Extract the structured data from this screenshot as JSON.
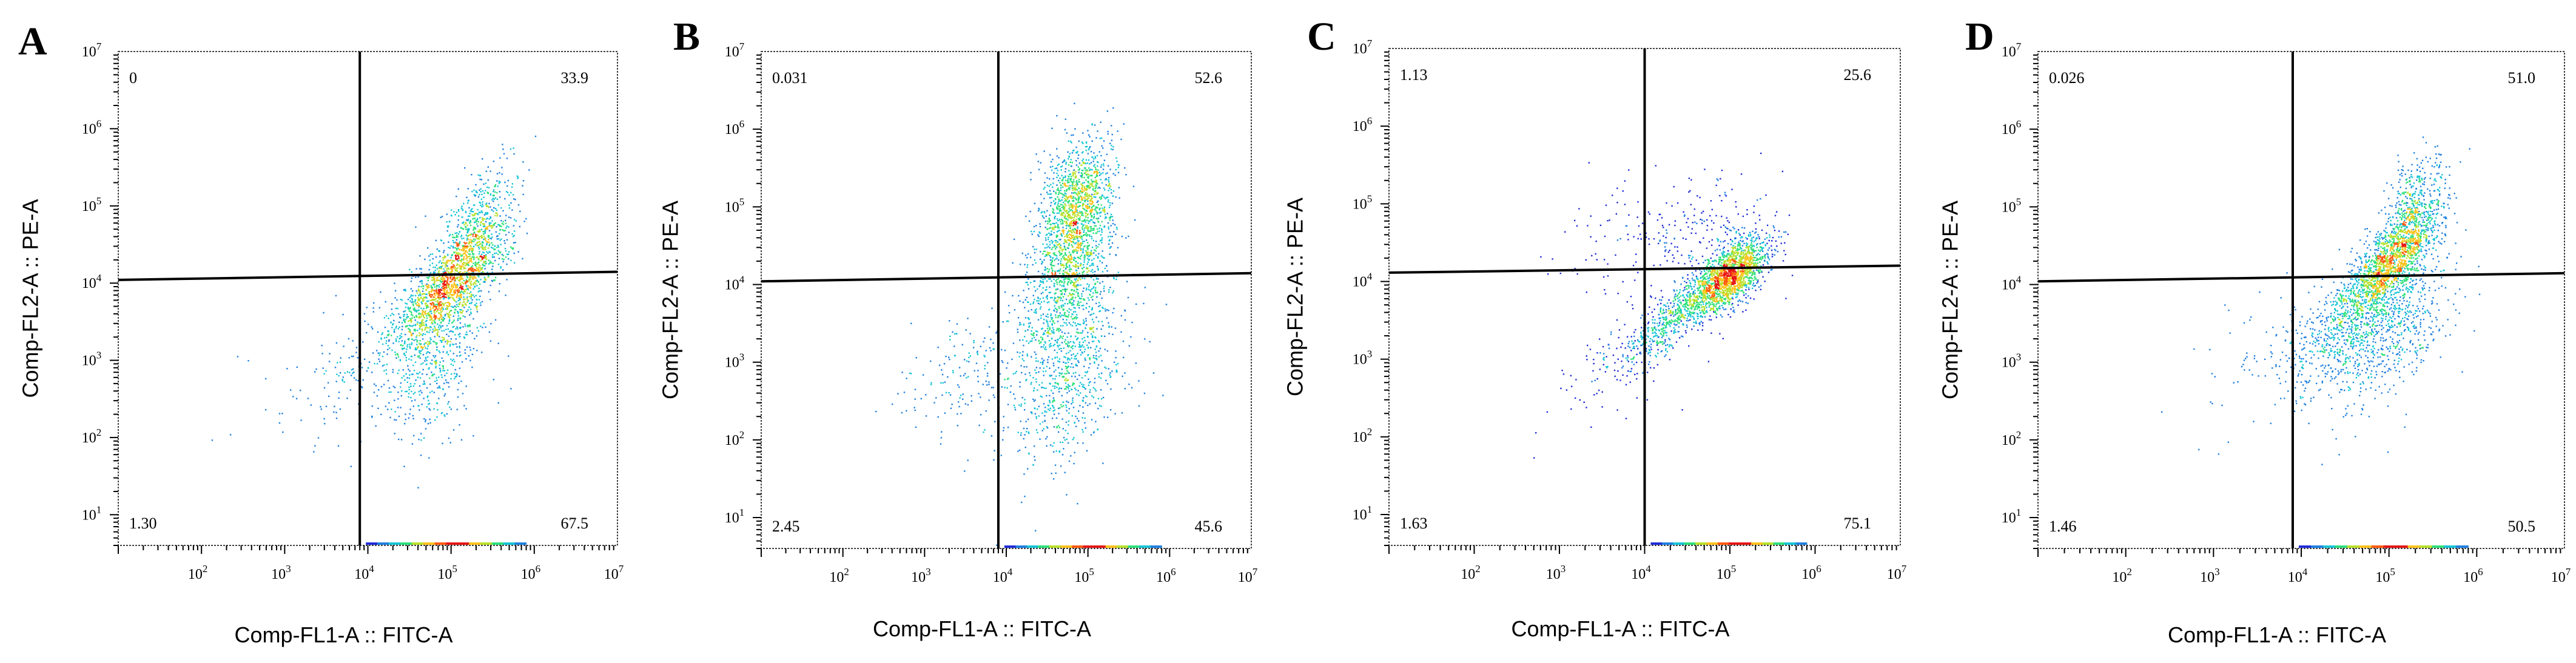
{
  "figure": {
    "description_free": true
  },
  "chart_data": [
    {
      "type": "scatter",
      "panel_label": "A",
      "title": "",
      "xlabel": "Comp-FL1-A :: FITC-A",
      "ylabel": "Comp-FL2-A :: PE-A",
      "xscale": "log",
      "yscale": "log",
      "xlim": [
        10,
        10000000
      ],
      "ylim": [
        4,
        10000000
      ],
      "x_ticks": [
        {
          "base": "10",
          "exp": "2"
        },
        {
          "base": "10",
          "exp": "3"
        },
        {
          "base": "10",
          "exp": "4"
        },
        {
          "base": "10",
          "exp": "5"
        },
        {
          "base": "10",
          "exp": "6"
        },
        {
          "base": "10",
          "exp": "7"
        }
      ],
      "y_ticks": [
        {
          "base": "10",
          "exp": "1"
        },
        {
          "base": "10",
          "exp": "2"
        },
        {
          "base": "10",
          "exp": "3"
        },
        {
          "base": "10",
          "exp": "4"
        },
        {
          "base": "10",
          "exp": "5"
        },
        {
          "base": "10",
          "exp": "6"
        },
        {
          "base": "10",
          "exp": "7"
        }
      ],
      "gate": {
        "x": 8000,
        "y_left": 11000,
        "y_right": 14000
      },
      "quadrants": {
        "upper_left": "0",
        "upper_right": "33.9",
        "lower_left": "1.30",
        "lower_right": "67.5"
      },
      "clusters": [
        {
          "cx": 100000,
          "cy": 10000,
          "spread_x": 0.28,
          "spread_y": 0.32,
          "corr": 0.75,
          "n": 1400
        },
        {
          "cx": 200000,
          "cy": 60000,
          "spread_x": 0.18,
          "spread_y": 0.3,
          "corr": 0.6,
          "n": 450
        },
        {
          "cx": 60000,
          "cy": 1500,
          "spread_x": 0.25,
          "spread_y": 0.45,
          "corr": 0.3,
          "n": 650
        },
        {
          "cx": 8000,
          "cy": 1000,
          "spread_x": 0.3,
          "spread_y": 0.35,
          "corr": 0.5,
          "n": 110
        },
        {
          "cx": 1500,
          "cy": 300,
          "spread_x": 0.35,
          "spread_y": 0.45,
          "corr": 0.3,
          "n": 25
        }
      ]
    },
    {
      "type": "scatter",
      "panel_label": "B",
      "title": "",
      "xlabel": "Comp-FL1-A :: FITC-A",
      "ylabel": "Comp-FL2-A :: PE-A",
      "xscale": "log",
      "yscale": "log",
      "xlim": [
        10,
        10000000
      ],
      "ylim": [
        4,
        10000000
      ],
      "x_ticks": [
        {
          "base": "10",
          "exp": "2"
        },
        {
          "base": "10",
          "exp": "3"
        },
        {
          "base": "10",
          "exp": "4"
        },
        {
          "base": "10",
          "exp": "5"
        },
        {
          "base": "10",
          "exp": "6"
        },
        {
          "base": "10",
          "exp": "7"
        }
      ],
      "y_ticks": [
        {
          "base": "10",
          "exp": "1"
        },
        {
          "base": "10",
          "exp": "2"
        },
        {
          "base": "10",
          "exp": "3"
        },
        {
          "base": "10",
          "exp": "4"
        },
        {
          "base": "10",
          "exp": "5"
        },
        {
          "base": "10",
          "exp": "6"
        },
        {
          "base": "10",
          "exp": "7"
        }
      ],
      "gate": {
        "x": 8000,
        "y_left": 11000,
        "y_right": 14000
      },
      "quadrants": {
        "upper_left": "0.031",
        "upper_right": "52.6",
        "lower_left": "2.45",
        "lower_right": "45.6"
      },
      "clusters": [
        {
          "cx": 70000,
          "cy": 100000,
          "spread_x": 0.18,
          "spread_y": 0.35,
          "corr": 0.3,
          "n": 1300
        },
        {
          "cx": 55000,
          "cy": 10000,
          "spread_x": 0.22,
          "spread_y": 0.35,
          "corr": 0.4,
          "n": 800
        },
        {
          "cx": 50000,
          "cy": 700,
          "spread_x": 0.3,
          "spread_y": 0.45,
          "corr": 0.3,
          "n": 700
        },
        {
          "cx": 3000,
          "cy": 700,
          "spread_x": 0.35,
          "spread_y": 0.35,
          "corr": 0.5,
          "n": 160
        }
      ]
    },
    {
      "type": "scatter",
      "panel_label": "C",
      "title": "",
      "xlabel": "Comp-FL1-A :: FITC-A",
      "ylabel": "Comp-FL2-A :: PE-A",
      "xscale": "log",
      "yscale": "log",
      "xlim": [
        10,
        10000000
      ],
      "ylim": [
        4,
        10000000
      ],
      "x_ticks": [
        {
          "base": "10",
          "exp": "2"
        },
        {
          "base": "10",
          "exp": "3"
        },
        {
          "base": "10",
          "exp": "4"
        },
        {
          "base": "10",
          "exp": "5"
        },
        {
          "base": "10",
          "exp": "6"
        },
        {
          "base": "10",
          "exp": "7"
        }
      ],
      "y_ticks": [
        {
          "base": "10",
          "exp": "1"
        },
        {
          "base": "10",
          "exp": "2"
        },
        {
          "base": "10",
          "exp": "3"
        },
        {
          "base": "10",
          "exp": "4"
        },
        {
          "base": "10",
          "exp": "5"
        },
        {
          "base": "10",
          "exp": "6"
        },
        {
          "base": "10",
          "exp": "7"
        }
      ],
      "gate": {
        "x": 10000,
        "y_left": 13000,
        "y_right": 16000
      },
      "quadrants": {
        "upper_left": "1.13",
        "upper_right": "25.6",
        "lower_left": "1.63",
        "lower_right": "75.1"
      },
      "clusters": [
        {
          "cx": 100000,
          "cy": 12000,
          "spread_x": 0.18,
          "spread_y": 0.2,
          "corr": 0.6,
          "n": 1500
        },
        {
          "cx": 25000,
          "cy": 4000,
          "spread_x": 0.25,
          "spread_y": 0.25,
          "corr": 0.85,
          "n": 600
        },
        {
          "cx": 6000,
          "cy": 1200,
          "spread_x": 0.3,
          "spread_y": 0.3,
          "corr": 0.6,
          "n": 140
        },
        {
          "cx": 50000,
          "cy": 40000,
          "spread_x": 0.35,
          "spread_y": 0.3,
          "corr": 0.2,
          "n": 220
        },
        {
          "cx": 5000,
          "cy": 40000,
          "spread_x": 0.3,
          "spread_y": 0.3,
          "corr": 0.1,
          "n": 70
        }
      ]
    },
    {
      "type": "scatter",
      "panel_label": "D",
      "title": "",
      "xlabel": "Comp-FL1-A :: FITC-A",
      "ylabel": "Comp-FL2-A :: PE-A",
      "xscale": "log",
      "yscale": "log",
      "xlim": [
        10,
        10000000
      ],
      "ylim": [
        4,
        10000000
      ],
      "x_ticks": [
        {
          "base": "10",
          "exp": "2"
        },
        {
          "base": "10",
          "exp": "3"
        },
        {
          "base": "10",
          "exp": "4"
        },
        {
          "base": "10",
          "exp": "5"
        },
        {
          "base": "10",
          "exp": "6"
        },
        {
          "base": "10",
          "exp": "7"
        }
      ],
      "y_ticks": [
        {
          "base": "10",
          "exp": "1"
        },
        {
          "base": "10",
          "exp": "2"
        },
        {
          "base": "10",
          "exp": "3"
        },
        {
          "base": "10",
          "exp": "4"
        },
        {
          "base": "10",
          "exp": "5"
        },
        {
          "base": "10",
          "exp": "6"
        },
        {
          "base": "10",
          "exp": "7"
        }
      ],
      "gate": {
        "x": 8000,
        "y_left": 11000,
        "y_right": 14000
      },
      "quadrants": {
        "upper_left": "0.026",
        "upper_right": "51.0",
        "lower_left": "1.46",
        "lower_right": "50.5"
      },
      "clusters": [
        {
          "cx": 100000,
          "cy": 20000,
          "spread_x": 0.22,
          "spread_y": 0.3,
          "corr": 0.75,
          "n": 1500
        },
        {
          "cx": 180000,
          "cy": 100000,
          "spread_x": 0.15,
          "spread_y": 0.3,
          "corr": 0.5,
          "n": 400
        },
        {
          "cx": 80000,
          "cy": 3000,
          "spread_x": 0.3,
          "spread_y": 0.4,
          "corr": 0.4,
          "n": 900
        },
        {
          "cx": 20000,
          "cy": 2000,
          "spread_x": 0.25,
          "spread_y": 0.3,
          "corr": 0.5,
          "n": 300
        },
        {
          "cx": 3000,
          "cy": 1200,
          "spread_x": 0.35,
          "spread_y": 0.35,
          "corr": 0.5,
          "n": 60
        }
      ]
    }
  ]
}
